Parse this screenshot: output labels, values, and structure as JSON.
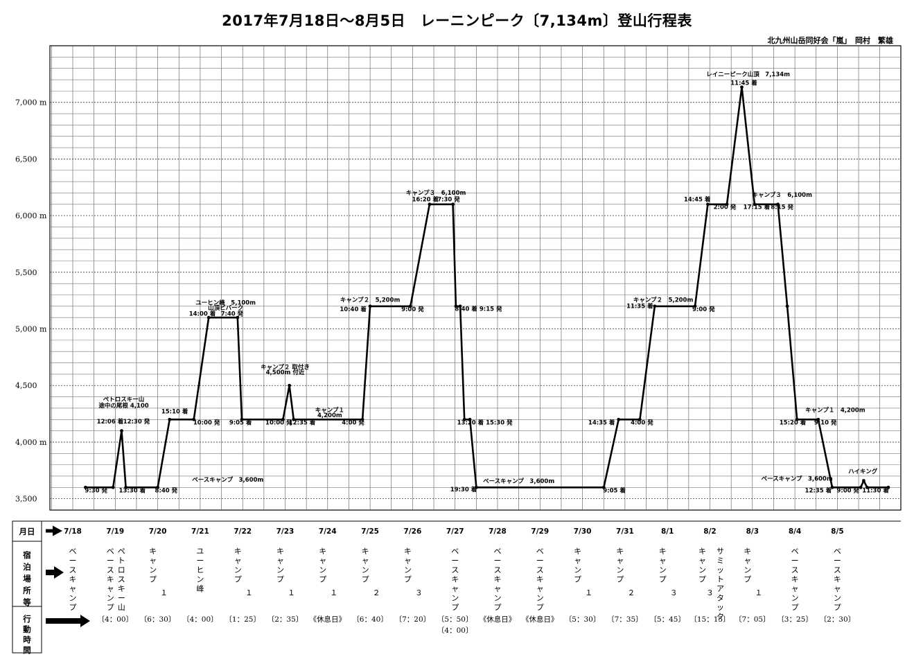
{
  "title": "2017年7月18日～8月5日　レーニンピーク〔7,134m〕登山行程表",
  "author": "北九州山岳同好会「嵐」　岡村　繁雄",
  "chart_data": {
    "type": "line",
    "y_ticks": [
      {
        "value": 3500,
        "label": "3,500"
      },
      {
        "value": 4000,
        "label": "4,000 m"
      },
      {
        "value": 4500,
        "label": "4,500"
      },
      {
        "value": 5000,
        "label": "5,000 m"
      },
      {
        "value": 5500,
        "label": "5,500"
      },
      {
        "value": 6000,
        "label": "6,000 m"
      },
      {
        "value": 6500,
        "label": "6,500"
      },
      {
        "value": 7000,
        "label": "7,000 m"
      }
    ],
    "ylim": [
      3400,
      7500
    ],
    "xlim": [
      0,
      19
    ],
    "dates": [
      "7/18",
      "7/19",
      "7/20",
      "7/21",
      "7/22",
      "7/23",
      "7/24",
      "7/25",
      "7/26",
      "7/27",
      "7/28",
      "7/29",
      "7/30",
      "7/31",
      "8/1",
      "8/2",
      "8/3",
      "8/4",
      "8/5"
    ],
    "series": [
      {
        "points": [
          [
            0.3,
            3600
          ],
          [
            0.95,
            3600
          ],
          [
            1.15,
            4100
          ],
          [
            1.25,
            3600
          ],
          [
            2.0,
            3600
          ],
          [
            2.28,
            4200
          ],
          [
            2.85,
            4200
          ],
          [
            3.2,
            5100
          ],
          [
            3.88,
            5100
          ],
          [
            3.98,
            4200
          ],
          [
            4.95,
            4200
          ],
          [
            5.1,
            4500
          ],
          [
            5.2,
            4200
          ],
          [
            6.82,
            4200
          ],
          [
            7.0,
            5200
          ],
          [
            7.95,
            5200
          ],
          [
            8.4,
            6100
          ],
          [
            8.95,
            6100
          ],
          [
            9.02,
            5200
          ],
          [
            9.12,
            5200
          ],
          [
            9.22,
            4200
          ],
          [
            9.35,
            4200
          ],
          [
            9.5,
            3600
          ],
          [
            12.5,
            3600
          ],
          [
            12.85,
            4200
          ],
          [
            13.35,
            4200
          ],
          [
            13.7,
            5200
          ],
          [
            14.65,
            5200
          ],
          [
            14.95,
            6100
          ],
          [
            15.4,
            6100
          ],
          [
            15.75,
            7134
          ],
          [
            16.05,
            6100
          ],
          [
            16.6,
            6100
          ],
          [
            16.82,
            5200
          ],
          [
            17.05,
            4200
          ],
          [
            17.55,
            4200
          ],
          [
            17.88,
            3600
          ],
          [
            18.55,
            3600
          ],
          [
            18.62,
            3660
          ],
          [
            18.7,
            3600
          ],
          [
            19.2,
            3600
          ]
        ]
      }
    ],
    "annotations": [
      {
        "x": 0.55,
        "y": 3555,
        "text": "9:30 発"
      },
      {
        "x": 1.4,
        "y": 3555,
        "text": "13:30 着"
      },
      {
        "x": 2.2,
        "y": 3555,
        "text": "8:40 発"
      },
      {
        "x": 3.65,
        "y": 3650,
        "text": "ベースキャンプ　3,600m"
      },
      {
        "x": 1.2,
        "y": 4360,
        "text": "ペトロスキー山"
      },
      {
        "x": 1.2,
        "y": 4305,
        "text": "途中の尾根 4,100"
      },
      {
        "x": 0.88,
        "y": 4165,
        "text": "12:06 着"
      },
      {
        "x": 1.5,
        "y": 4165,
        "text": "12:30 発"
      },
      {
        "x": 2.4,
        "y": 4255,
        "text": "15:10 着"
      },
      {
        "x": 3.15,
        "y": 4155,
        "text": "10:00 発"
      },
      {
        "x": 3.95,
        "y": 4155,
        "text": "9:05 着"
      },
      {
        "x": 3.6,
        "y": 5215,
        "text": "ユーヒン峰　5,100m"
      },
      {
        "x": 3.6,
        "y": 5170,
        "text": "山頂ビバーク"
      },
      {
        "x": 3.05,
        "y": 5115,
        "text": "14:00 着"
      },
      {
        "x": 3.75,
        "y": 5115,
        "text": "7:40 発"
      },
      {
        "x": 5.0,
        "y": 4645,
        "text": "キャンプ２ 取付き"
      },
      {
        "x": 5.0,
        "y": 4600,
        "text": "4,500m 付近"
      },
      {
        "x": 4.85,
        "y": 4155,
        "text": "10:00 発"
      },
      {
        "x": 5.4,
        "y": 4155,
        "text": "12:35 着"
      },
      {
        "x": 6.05,
        "y": 4265,
        "text": "キャンプ１"
      },
      {
        "x": 6.05,
        "y": 4220,
        "text": "4,200m"
      },
      {
        "x": 6.6,
        "y": 4155,
        "text": "4:00 発"
      },
      {
        "x": 7.0,
        "y": 5240,
        "text": "キャンプ２　5,200m"
      },
      {
        "x": 6.6,
        "y": 5155,
        "text": "10:40 着"
      },
      {
        "x": 8.0,
        "y": 5155,
        "text": "9:00 発"
      },
      {
        "x": 8.55,
        "y": 6185,
        "text": "キャンプ３　6,100m"
      },
      {
        "x": 8.3,
        "y": 6125,
        "text": "16:20 着"
      },
      {
        "x": 8.85,
        "y": 6125,
        "text": "7:30 発"
      },
      {
        "x": 9.55,
        "y": 5160,
        "text": "8:40 着  9:15 発"
      },
      {
        "x": 9.7,
        "y": 4155,
        "text": "13:20 着  15:30 発"
      },
      {
        "x": 9.2,
        "y": 3565,
        "text": "19:30 着"
      },
      {
        "x": 10.5,
        "y": 3640,
        "text": "ベースキャンプ　3,600m"
      },
      {
        "x": 12.75,
        "y": 3555,
        "text": "9:05 着"
      },
      {
        "x": 12.45,
        "y": 4155,
        "text": "14:35 着"
      },
      {
        "x": 13.4,
        "y": 4155,
        "text": "4:00 発"
      },
      {
        "x": 13.9,
        "y": 5240,
        "text": "キャンプ２　5,200m"
      },
      {
        "x": 13.35,
        "y": 5185,
        "text": "11:35 着"
      },
      {
        "x": 14.85,
        "y": 5155,
        "text": "9:00 発"
      },
      {
        "x": 14.7,
        "y": 6125,
        "text": "14:45 着"
      },
      {
        "x": 15.35,
        "y": 6060,
        "text": "2:00 発"
      },
      {
        "x": 16.1,
        "y": 6060,
        "text": "17:15 着"
      },
      {
        "x": 15.9,
        "y": 7230,
        "text": "レイニーピーク山頂　7,134m"
      },
      {
        "x": 15.8,
        "y": 7155,
        "text": "11:45 着"
      },
      {
        "x": 16.7,
        "y": 6165,
        "text": "キャンプ３　6,100m"
      },
      {
        "x": 16.7,
        "y": 6060,
        "text": "8:15 発"
      },
      {
        "x": 17.95,
        "y": 4265,
        "text": "キャンプ１　4,200m"
      },
      {
        "x": 16.95,
        "y": 4155,
        "text": "15:20 着"
      },
      {
        "x": 17.72,
        "y": 4155,
        "text": "9:10 発"
      },
      {
        "x": 17.05,
        "y": 3660,
        "text": "ベースキャンプ　3,600m"
      },
      {
        "x": 17.55,
        "y": 3555,
        "text": "12:35 着"
      },
      {
        "x": 18.25,
        "y": 3555,
        "text": "9:00 発"
      },
      {
        "x": 18.9,
        "y": 3555,
        "text": "11:30 着"
      },
      {
        "x": 18.6,
        "y": 3725,
        "text": "ハイキング"
      }
    ]
  },
  "rows": {
    "date_label": "月日",
    "stay_label": "宿泊場所等",
    "action_label": "行動時間"
  },
  "stays": [
    [
      "ベースキャンプ"
    ],
    [
      "ベースキャンプ",
      "ペトロスキー山"
    ],
    [
      "キャンプ",
      "１"
    ],
    [
      "ユーヒン峰"
    ],
    [
      "キャンプ",
      "１"
    ],
    [
      "キャンプ",
      "１"
    ],
    [
      "キャンプ",
      "１"
    ],
    [
      "キャンプ",
      "２"
    ],
    [
      "キャンプ",
      "３"
    ],
    [
      "ベースキャンプ"
    ],
    [
      "ベースキャンプ"
    ],
    [
      "ベースキャンプ"
    ],
    [
      "キャンプ",
      "１"
    ],
    [
      "キャンプ",
      "２"
    ],
    [
      "キャンプ",
      "３"
    ],
    [
      "キャンプ",
      "３",
      "サミットアタック"
    ],
    [
      "キャンプ",
      "１"
    ],
    [
      "ベースキャンプ"
    ],
    [
      "ベースキャンプ"
    ]
  ],
  "actions": [
    "",
    "〔4：00〕",
    "〔6：30〕",
    "〔4：00〕",
    "〔1：25〕",
    "〔2：35〕",
    "《休息日》",
    "〔6：40〕",
    "〔7：20〕",
    "〔5：50〕\n〔4：00〕",
    "《休息日》",
    "《休息日》",
    "〔5：30〕",
    "〔7：35〕",
    "〔5：45〕",
    "〔15：15〕",
    "〔7：05〕",
    "〔3：25〕",
    "〔2：30〕"
  ]
}
